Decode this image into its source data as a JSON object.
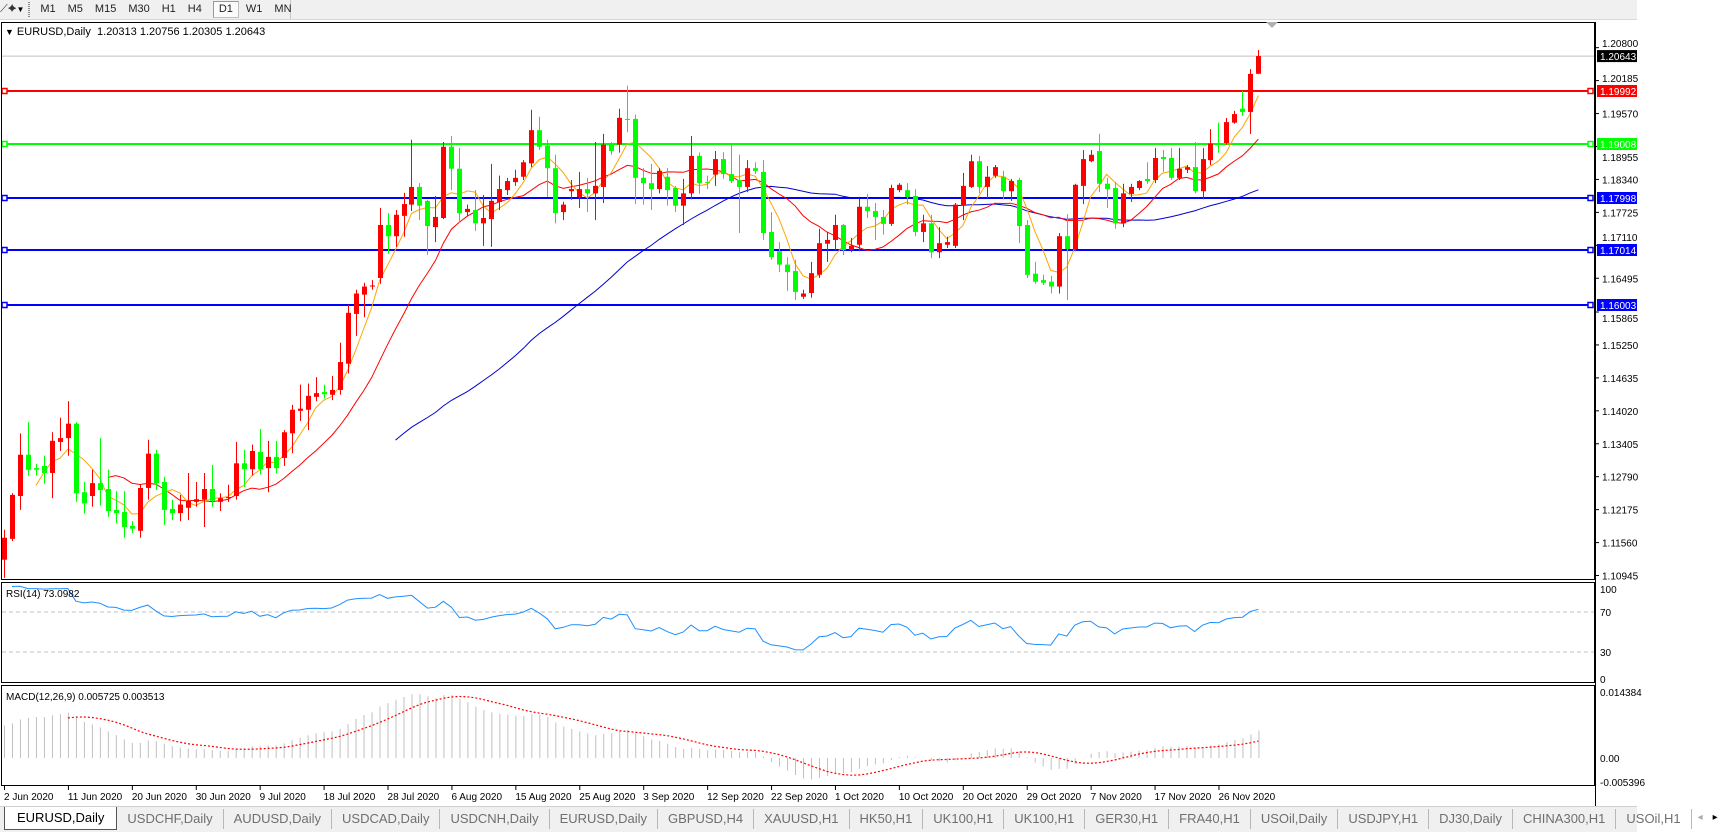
{
  "toolbar": {
    "tool_icon": "line-tools-icon",
    "timeframes": [
      "M1",
      "M5",
      "M15",
      "M30",
      "H1",
      "H4",
      "D1",
      "W1",
      "MN"
    ],
    "active_timeframe": "D1"
  },
  "chart": {
    "symbol_title": "EURUSD,Daily",
    "ohlc_text": "1.20313 1.20756 1.20305 1.20643"
  },
  "colors": {
    "bull_candle": "#ff0000",
    "bear_candle": "#00ff00",
    "ma_fast": "#ffa500",
    "ma_mid": "#ff0000",
    "ma_slow": "#0000cd",
    "rsi_line": "#1e90ff",
    "macd_hist": "#c0c0c0",
    "macd_signal": "#ff0000",
    "bid_line": "#c0c0c0"
  },
  "chart_data": {
    "type": "bar",
    "style": "candlestick",
    "symbol": "EURUSD",
    "timeframe": "Daily",
    "ylim": [
      1.10945,
      1.208
    ],
    "price_ticks": [
      "1.20800",
      "1.20185",
      "1.19570",
      "1.18955",
      "1.18340",
      "1.17725",
      "1.17110",
      "1.16495",
      "1.15865",
      "1.15250",
      "1.14635",
      "1.14020",
      "1.13405",
      "1.12790",
      "1.12175",
      "1.11560",
      "1.10945"
    ],
    "x_labels": [
      "2 Jun 2020",
      "11 Jun 2020",
      "20 Jun 2020",
      "30 Jun 2020",
      "9 Jul 2020",
      "18 Jul 2020",
      "28 Jul 2020",
      "6 Aug 2020",
      "15 Aug 2020",
      "25 Aug 2020",
      "3 Sep 2020",
      "12 Sep 2020",
      "22 Sep 2020",
      "1 Oct 2020",
      "10 Oct 2020",
      "20 Oct 2020",
      "29 Oct 2020",
      "7 Nov 2020",
      "17 Nov 2020",
      "26 Nov 2020"
    ],
    "bid": {
      "price": "1.20643",
      "color": "#000000"
    },
    "horizontal_lines": [
      {
        "price": "1.19992",
        "color": "#ff0000"
      },
      {
        "price": "1.19008",
        "color": "#00ff00"
      },
      {
        "price": "1.17998",
        "color": "#0000ff"
      },
      {
        "price": "1.17014",
        "color": "#0000ff"
      },
      {
        "price": "1.16003",
        "color": "#0000ff"
      }
    ],
    "candles_ohlc": [
      [
        1.1124,
        1.118,
        1.109,
        1.1165
      ],
      [
        1.1163,
        1.1248,
        1.1159,
        1.1245
      ],
      [
        1.1243,
        1.136,
        1.1217,
        1.132
      ],
      [
        1.132,
        1.1381,
        1.1281,
        1.1292
      ],
      [
        1.1295,
        1.1303,
        1.1281,
        1.1292
      ],
      [
        1.1299,
        1.1318,
        1.1266,
        1.1286
      ],
      [
        1.1286,
        1.1362,
        1.1239,
        1.1346
      ],
      [
        1.1344,
        1.1389,
        1.1327,
        1.1351
      ],
      [
        1.1351,
        1.142,
        1.1318,
        1.1378
      ],
      [
        1.1378,
        1.1381,
        1.1232,
        1.1248
      ],
      [
        1.125,
        1.1269,
        1.121,
        1.1229
      ],
      [
        1.1243,
        1.1292,
        1.1223,
        1.1267
      ],
      [
        1.1267,
        1.1351,
        1.1225,
        1.1254
      ],
      [
        1.1256,
        1.1292,
        1.1204,
        1.1215
      ],
      [
        1.1217,
        1.1252,
        1.1192,
        1.1211
      ],
      [
        1.1213,
        1.1252,
        1.1165,
        1.1185
      ],
      [
        1.1187,
        1.1196,
        1.1174,
        1.1182
      ],
      [
        1.1178,
        1.1264,
        1.1165,
        1.1258
      ],
      [
        1.1258,
        1.1348,
        1.1236,
        1.1322
      ],
      [
        1.1322,
        1.1329,
        1.1254,
        1.1267
      ],
      [
        1.1269,
        1.1279,
        1.1189,
        1.1217
      ],
      [
        1.1219,
        1.1236,
        1.1198,
        1.1211
      ],
      [
        1.1211,
        1.1245,
        1.1196,
        1.1227
      ],
      [
        1.1221,
        1.1286,
        1.1198,
        1.1234
      ],
      [
        1.1232,
        1.1269,
        1.1223,
        1.1237
      ],
      [
        1.1236,
        1.1286,
        1.1185,
        1.1256
      ],
      [
        1.1256,
        1.1301,
        1.1223,
        1.1234
      ],
      [
        1.1232,
        1.1248,
        1.1215,
        1.1239
      ],
      [
        1.1239,
        1.1264,
        1.1232,
        1.1241
      ],
      [
        1.1243,
        1.1344,
        1.1236,
        1.1304
      ],
      [
        1.1304,
        1.1329,
        1.126,
        1.1293
      ],
      [
        1.1293,
        1.1339,
        1.1281,
        1.1327
      ],
      [
        1.1325,
        1.1368,
        1.1283,
        1.1293
      ],
      [
        1.1295,
        1.1346,
        1.125,
        1.1316
      ],
      [
        1.1316,
        1.1346,
        1.1285,
        1.1295
      ],
      [
        1.1314,
        1.1366,
        1.1299,
        1.1362
      ],
      [
        1.136,
        1.1413,
        1.1323,
        1.1404
      ],
      [
        1.1402,
        1.1451,
        1.1383,
        1.1406
      ],
      [
        1.1404,
        1.1453,
        1.1366,
        1.143
      ],
      [
        1.1428,
        1.1465,
        1.142,
        1.1435
      ],
      [
        1.1437,
        1.1451,
        1.1425,
        1.1433
      ],
      [
        1.1432,
        1.1467,
        1.1422,
        1.1441
      ],
      [
        1.1441,
        1.1529,
        1.1432,
        1.1493
      ],
      [
        1.149,
        1.16,
        1.1472,
        1.1585
      ],
      [
        1.1583,
        1.1628,
        1.1542,
        1.1621
      ],
      [
        1.1619,
        1.1641,
        1.1577,
        1.1634
      ],
      [
        1.1634,
        1.1646,
        1.1628,
        1.1636
      ],
      [
        1.165,
        1.1781,
        1.1639,
        1.1749
      ],
      [
        1.1749,
        1.1771,
        1.1695,
        1.1728
      ],
      [
        1.1728,
        1.1777,
        1.1708,
        1.1768
      ],
      [
        1.1766,
        1.1809,
        1.1727,
        1.1788
      ],
      [
        1.1787,
        1.1908,
        1.1775,
        1.182
      ],
      [
        1.182,
        1.1827,
        1.1758,
        1.1785
      ],
      [
        1.1794,
        1.1796,
        1.1693,
        1.1747
      ],
      [
        1.1745,
        1.1803,
        1.1717,
        1.1764
      ],
      [
        1.1762,
        1.1904,
        1.176,
        1.1895
      ],
      [
        1.1895,
        1.1915,
        1.1814,
        1.1854
      ],
      [
        1.1854,
        1.1893,
        1.1754,
        1.1771
      ],
      [
        1.1773,
        1.1787,
        1.1766,
        1.1779
      ],
      [
        1.1777,
        1.1814,
        1.1738,
        1.1752
      ],
      [
        1.1752,
        1.1805,
        1.171,
        1.1762
      ],
      [
        1.176,
        1.1863,
        1.1708,
        1.1794
      ],
      [
        1.1792,
        1.1841,
        1.1777,
        1.1816
      ],
      [
        1.1814,
        1.1837,
        1.1805,
        1.1831
      ],
      [
        1.1829,
        1.1852,
        1.1822,
        1.1837
      ],
      [
        1.1839,
        1.187,
        1.1833,
        1.1866
      ],
      [
        1.1864,
        1.1964,
        1.1857,
        1.1926
      ],
      [
        1.1926,
        1.1951,
        1.1889,
        1.1895
      ],
      [
        1.1897,
        1.1908,
        1.1801,
        1.1855
      ],
      [
        1.1855,
        1.188,
        1.1752,
        1.1771
      ],
      [
        1.1773,
        1.1792,
        1.1758,
        1.1787
      ],
      [
        1.1812,
        1.1833,
        1.1796,
        1.1816
      ],
      [
        1.1801,
        1.1848,
        1.1781,
        1.1816
      ],
      [
        1.1816,
        1.1837,
        1.1773,
        1.1808
      ],
      [
        1.1808,
        1.1904,
        1.1758,
        1.1822
      ],
      [
        1.182,
        1.1919,
        1.179,
        1.1899
      ],
      [
        1.1899,
        1.1904,
        1.188,
        1.1887
      ],
      [
        1.1899,
        1.1966,
        1.1884,
        1.1949
      ],
      [
        1.1947,
        1.2009,
        1.1922,
        1.1945
      ],
      [
        1.1947,
        1.1955,
        1.1788,
        1.1837
      ],
      [
        1.1837,
        1.1855,
        1.1787,
        1.1827
      ],
      [
        1.1827,
        1.1863,
        1.1777,
        1.1816
      ],
      [
        1.1816,
        1.1855,
        1.1808,
        1.185
      ],
      [
        1.1839,
        1.1855,
        1.1785,
        1.1814
      ],
      [
        1.1818,
        1.1822,
        1.1773,
        1.1785
      ],
      [
        1.1785,
        1.1835,
        1.1749,
        1.1808
      ],
      [
        1.1808,
        1.1915,
        1.1797,
        1.1878
      ],
      [
        1.1878,
        1.1884,
        1.1807,
        1.1827
      ],
      [
        1.1829,
        1.1841,
        1.1816,
        1.1827
      ],
      [
        1.1843,
        1.1887,
        1.1822,
        1.1872
      ],
      [
        1.1872,
        1.1885,
        1.1835,
        1.1844
      ],
      [
        1.1844,
        1.1899,
        1.1827,
        1.1831
      ],
      [
        1.1833,
        1.188,
        1.1734,
        1.182
      ],
      [
        1.182,
        1.187,
        1.181,
        1.1855
      ],
      [
        1.1855,
        1.1866,
        1.1844,
        1.185
      ],
      [
        1.1848,
        1.187,
        1.1721,
        1.1734
      ],
      [
        1.1736,
        1.1773,
        1.1684,
        1.1689
      ],
      [
        1.17,
        1.1717,
        1.1661,
        1.1675
      ],
      [
        1.1675,
        1.1689,
        1.1626,
        1.1661
      ],
      [
        1.1663,
        1.1684,
        1.1609,
        1.1624
      ],
      [
        1.1615,
        1.1628,
        1.1611,
        1.1621
      ],
      [
        1.1622,
        1.168,
        1.1613,
        1.1659
      ],
      [
        1.1656,
        1.1742,
        1.165,
        1.1715
      ],
      [
        1.1714,
        1.1736,
        1.168,
        1.1721
      ],
      [
        1.1721,
        1.1768,
        1.1702,
        1.1749
      ],
      [
        1.1749,
        1.1751,
        1.1693,
        1.1702
      ],
      [
        1.1702,
        1.1725,
        1.1698,
        1.171
      ],
      [
        1.1712,
        1.1798,
        1.17,
        1.1783
      ],
      [
        1.1783,
        1.1807,
        1.1762,
        1.1775
      ],
      [
        1.1775,
        1.179,
        1.1721,
        1.1764
      ],
      [
        1.1764,
        1.1777,
        1.1731,
        1.1751
      ],
      [
        1.1751,
        1.1824,
        1.1747,
        1.1818
      ],
      [
        1.1814,
        1.1827,
        1.181,
        1.1824
      ],
      [
        1.1814,
        1.1827,
        1.1787,
        1.1801
      ],
      [
        1.1803,
        1.1816,
        1.1728,
        1.1736
      ],
      [
        1.1736,
        1.1768,
        1.1717,
        1.1752
      ],
      [
        1.1752,
        1.1768,
        1.1687,
        1.1698
      ],
      [
        1.1698,
        1.1745,
        1.1687,
        1.1715
      ],
      [
        1.1712,
        1.1727,
        1.1706,
        1.1717
      ],
      [
        1.171,
        1.179,
        1.1706,
        1.1787
      ],
      [
        1.1785,
        1.1846,
        1.1758,
        1.1822
      ],
      [
        1.182,
        1.188,
        1.1818,
        1.1868
      ],
      [
        1.1868,
        1.1878,
        1.1808,
        1.182
      ],
      [
        1.182,
        1.1859,
        1.1799,
        1.1839
      ],
      [
        1.1841,
        1.1861,
        1.1837,
        1.1857
      ],
      [
        1.1839,
        1.185,
        1.1797,
        1.1812
      ],
      [
        1.1812,
        1.1835,
        1.1794,
        1.1831
      ],
      [
        1.1833,
        1.1837,
        1.1715,
        1.1747
      ],
      [
        1.1749,
        1.1758,
        1.165,
        1.1656
      ],
      [
        1.1658,
        1.168,
        1.1639,
        1.1643
      ],
      [
        1.1646,
        1.1656,
        1.1637,
        1.1641
      ],
      [
        1.1643,
        1.1654,
        1.1621,
        1.1634
      ],
      [
        1.1634,
        1.1734,
        1.1621,
        1.1728
      ],
      [
        1.1728,
        1.1769,
        1.1609,
        1.1704
      ],
      [
        1.1704,
        1.1826,
        1.17,
        1.1824
      ],
      [
        1.1822,
        1.1889,
        1.1788,
        1.1872
      ],
      [
        1.1868,
        1.1889,
        1.1866,
        1.188
      ],
      [
        1.1887,
        1.1919,
        1.181,
        1.1826
      ],
      [
        1.1826,
        1.1837,
        1.1781,
        1.1816
      ],
      [
        1.1818,
        1.1829,
        1.1742,
        1.1752
      ],
      [
        1.1752,
        1.1826,
        1.1745,
        1.1808
      ],
      [
        1.1807,
        1.1826,
        1.1792,
        1.182
      ],
      [
        1.1818,
        1.1833,
        1.1814,
        1.1831
      ],
      [
        1.1835,
        1.1866,
        1.1826,
        1.1831
      ],
      [
        1.1833,
        1.1893,
        1.1827,
        1.1874
      ],
      [
        1.1876,
        1.1889,
        1.1848,
        1.1872
      ],
      [
        1.1874,
        1.1893,
        1.1833,
        1.1837
      ],
      [
        1.1837,
        1.1893,
        1.1833,
        1.1854
      ],
      [
        1.1852,
        1.1861,
        1.1846,
        1.1857
      ],
      [
        1.1857,
        1.1904,
        1.1808,
        1.1812
      ],
      [
        1.1812,
        1.1893,
        1.1797,
        1.1872
      ],
      [
        1.187,
        1.1928,
        1.1861,
        1.1901
      ],
      [
        1.1902,
        1.194,
        1.1884,
        1.1899
      ],
      [
        1.1902,
        1.1949,
        1.1899,
        1.1941
      ],
      [
        1.194,
        1.1962,
        1.1938,
        1.1956
      ],
      [
        1.1966,
        1.1999,
        1.1953,
        1.196
      ],
      [
        1.196,
        1.204,
        1.1919,
        1.2031
      ],
      [
        1.20313,
        1.20756,
        1.20305,
        1.20643
      ]
    ],
    "rsi": {
      "label": "RSI(14) 73.0982",
      "ticks": [
        "100",
        "70",
        "30",
        "0"
      ],
      "levels": [
        70,
        30
      ]
    },
    "macd": {
      "label": "MACD(12,26,9) 0.005725 0.003513",
      "ticks": [
        "0.014384",
        "0.00",
        "-0.005396"
      ]
    }
  },
  "tabs": {
    "items": [
      "EURUSD,Daily",
      "USDCHF,Daily",
      "AUDUSD,Daily",
      "USDCAD,Daily",
      "USDCNH,Daily",
      "EURUSD,Daily",
      "GBPUSD,H4",
      "XAUUSD,H1",
      "HK50,H1",
      "UK100,H1",
      "UK100,H1",
      "GER30,H1",
      "FRA40,H1",
      "USOil,Daily",
      "USDJPY,H1",
      "DJ30,Daily",
      "CHINA300,H1",
      "USOil,H1"
    ],
    "active_index": 0,
    "scroll_left": "◂",
    "scroll_right": "▸"
  }
}
